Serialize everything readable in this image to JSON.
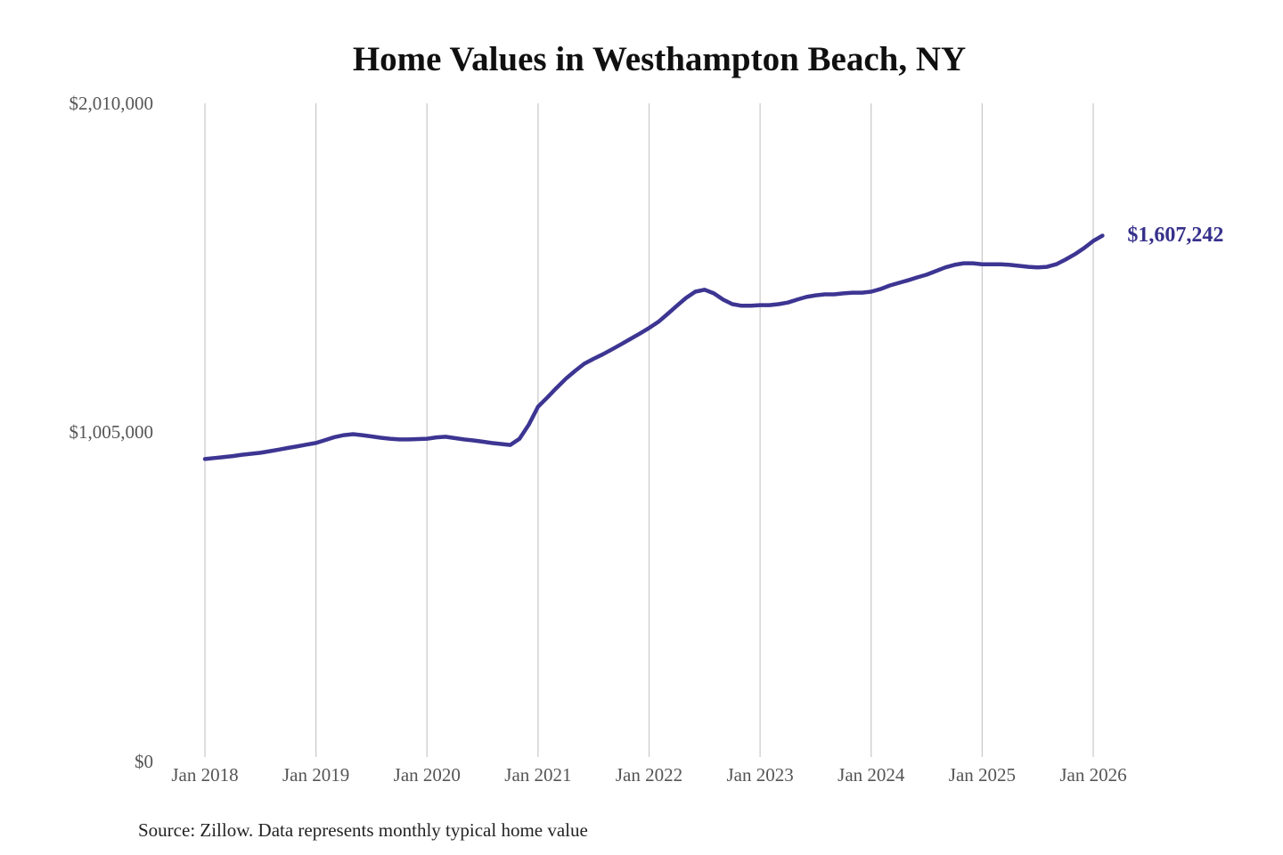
{
  "title": "Home Values in Westhampton Beach, NY",
  "source_note": "Source: Zillow. Data represents monthly typical home value",
  "end_label": "$1,607,242",
  "colors": {
    "background": "#ffffff",
    "line": "#3d3592",
    "end_label_text": "#37318b",
    "axis_text": "#555555",
    "title_text": "#101010",
    "source_text": "#232323",
    "gridline": "#cccccc"
  },
  "chart_data": {
    "type": "line",
    "title": "Home Values in Westhampton Beach, NY",
    "unit": "USD",
    "frequency": "monthly",
    "start_month": "2018-01",
    "end_month": "2026-02",
    "latest_value": 1607242,
    "grid": "vertical-only",
    "legend": "none",
    "y_axis": {
      "min": 0,
      "max": 2010000,
      "tick_values": [
        0,
        1005000,
        2010000
      ],
      "tick_labels": [
        "$0",
        "$1,005,000",
        "$2,010,000"
      ]
    },
    "x_axis": {
      "tick_labels": [
        "Jan 2018",
        "Jan 2019",
        "Jan 2020",
        "Jan 2021",
        "Jan 2022",
        "Jan 2023",
        "Jan 2024",
        "Jan 2025",
        "Jan 2026"
      ],
      "tick_month_indices": [
        0,
        12,
        24,
        36,
        48,
        60,
        72,
        84,
        96
      ]
    },
    "values": [
      925000,
      928000,
      931000,
      934000,
      938000,
      941000,
      944000,
      949000,
      954000,
      959000,
      964000,
      969000,
      974000,
      983000,
      992000,
      998000,
      1001000,
      998000,
      994000,
      990000,
      987000,
      985000,
      985000,
      986000,
      987000,
      991000,
      993000,
      989000,
      985000,
      982000,
      978000,
      974000,
      971000,
      968000,
      987000,
      1030000,
      1085000,
      1113000,
      1142000,
      1170000,
      1194000,
      1216000,
      1231000,
      1245000,
      1260000,
      1276000,
      1292000,
      1308000,
      1325000,
      1344000,
      1368000,
      1393000,
      1417000,
      1436000,
      1442000,
      1431000,
      1412000,
      1398000,
      1393000,
      1393000,
      1395000,
      1395000,
      1398000,
      1403000,
      1412000,
      1420000,
      1425000,
      1428000,
      1428000,
      1431000,
      1433000,
      1433000,
      1436000,
      1444000,
      1455000,
      1463000,
      1471000,
      1480000,
      1488000,
      1499000,
      1510000,
      1518000,
      1523000,
      1523000,
      1520000,
      1520000,
      1520000,
      1518000,
      1515000,
      1512000,
      1510000,
      1512000,
      1520000,
      1534000,
      1550000,
      1569000,
      1591000,
      1607242
    ]
  }
}
